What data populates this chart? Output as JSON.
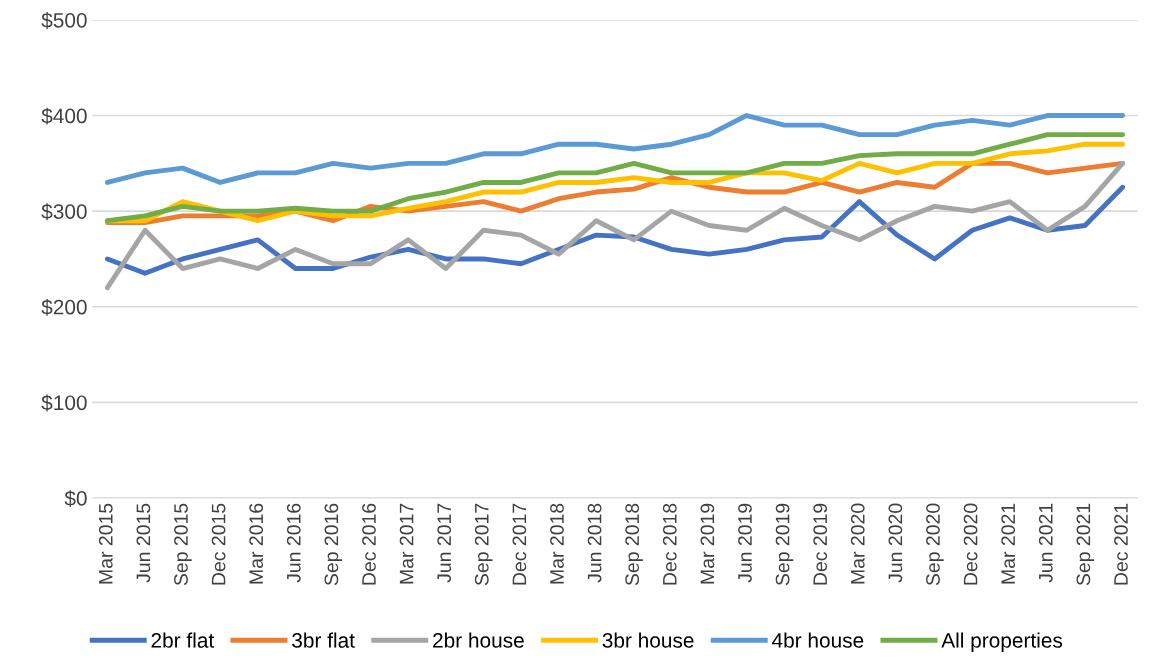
{
  "chart_data": {
    "type": "line",
    "categories": [
      "Mar 2015",
      "Jun 2015",
      "Sep 2015",
      "Dec 2015",
      "Mar 2016",
      "Jun 2016",
      "Sep 2016",
      "Dec 2016",
      "Mar 2017",
      "Jun 2017",
      "Sep 2017",
      "Dec 2017",
      "Mar 2018",
      "Jun 2018",
      "Sep 2018",
      "Dec 2018",
      "Mar 2019",
      "Jun 2019",
      "Sep 2019",
      "Dec 2019",
      "Mar 2020",
      "Jun 2020",
      "Sep 2020",
      "Dec 2020",
      "Mar 2021",
      "Jun 2021",
      "Sep 2021",
      "Dec 2021"
    ],
    "series": [
      {
        "name": "2br flat",
        "color": "#4472c4",
        "values": [
          250,
          235,
          250,
          260,
          270,
          240,
          240,
          252,
          260,
          250,
          250,
          245,
          260,
          275,
          273,
          260,
          255,
          260,
          270,
          273,
          310,
          275,
          250,
          280,
          293,
          280,
          285,
          325
        ]
      },
      {
        "name": "3br flat",
        "color": "#ed7d31",
        "values": [
          288,
          288,
          295,
          295,
          295,
          300,
          290,
          305,
          300,
          305,
          310,
          300,
          313,
          320,
          323,
          335,
          325,
          320,
          320,
          330,
          320,
          330,
          325,
          350,
          350,
          340,
          345,
          350
        ]
      },
      {
        "name": "2br house",
        "color": "#a5a5a5",
        "values": [
          220,
          280,
          240,
          250,
          240,
          260,
          245,
          245,
          270,
          240,
          280,
          275,
          255,
          290,
          270,
          300,
          285,
          280,
          303,
          285,
          270,
          290,
          305,
          300,
          310,
          280,
          305,
          350
        ]
      },
      {
        "name": "3br house",
        "color": "#ffc000",
        "values": [
          290,
          290,
          310,
          300,
          290,
          300,
          295,
          295,
          303,
          310,
          320,
          320,
          330,
          330,
          335,
          330,
          330,
          340,
          340,
          332,
          350,
          340,
          350,
          350,
          360,
          363,
          370,
          370
        ]
      },
      {
        "name": "4br house",
        "color": "#5b9bd5",
        "values": [
          330,
          340,
          345,
          330,
          340,
          340,
          350,
          345,
          350,
          350,
          360,
          360,
          370,
          370,
          365,
          370,
          380,
          400,
          390,
          390,
          380,
          380,
          390,
          395,
          390,
          400,
          400,
          400
        ]
      },
      {
        "name": "All properties",
        "color": "#70ad47",
        "values": [
          290,
          295,
          305,
          300,
          300,
          303,
          300,
          300,
          313,
          320,
          330,
          330,
          340,
          340,
          350,
          340,
          340,
          340,
          350,
          350,
          358,
          360,
          360,
          360,
          370,
          380,
          380,
          380
        ]
      }
    ],
    "ylim": [
      0,
      500
    ],
    "yticks": [
      {
        "value": 0,
        "label": "$0"
      },
      {
        "value": 100,
        "label": "$100"
      },
      {
        "value": 200,
        "label": "$200"
      },
      {
        "value": 300,
        "label": "$300"
      },
      {
        "value": 400,
        "label": "$400"
      },
      {
        "value": 500,
        "label": "$500"
      }
    ],
    "grid": "y",
    "legend": "bottom",
    "marker": "none",
    "line_style": "solid"
  }
}
